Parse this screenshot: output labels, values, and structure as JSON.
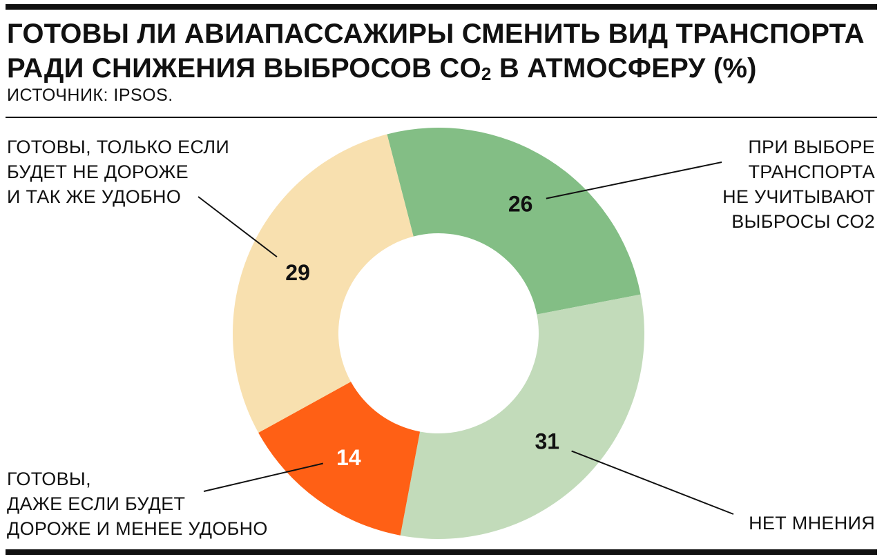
{
  "header": {
    "title_line1": "ГОТОВЫ ЛИ АВИАПАССАЖИРЫ СМЕНИТЬ ВИД ТРАНСПОРТА",
    "title_line2_pre": "РАДИ СНИЖЕНИЯ ВЫБРОСОВ CO",
    "title_line2_sub": "2",
    "title_line2_post": " В АТМОСФЕРУ (%)",
    "source": "ИСТОЧНИК: IPSOS."
  },
  "chart_data": {
    "type": "pie",
    "donut": true,
    "categories": [
      "ПРИ ВЫБОРЕ\nТРАНСПОРТА\nНЕ УЧИТЫВАЮТ\nВЫБРОСЫ CO2",
      "НЕТ МНЕНИЯ",
      "ГОТОВЫ,\nДАЖЕ ЕСЛИ БУДЕТ\nДОРОЖЕ И МЕНЕЕ УДОБНО",
      "ГОТОВЫ, ТОЛЬКО ЕСЛИ\nБУДЕТ НЕ ДОРОЖЕ\nИ ТАК ЖЕ УДОБНО"
    ],
    "values": [
      26,
      31,
      14,
      29
    ],
    "value_labels": [
      "26",
      "31",
      "14",
      "29"
    ],
    "colors": [
      "#83BE85",
      "#C2DBBA",
      "#FF6015",
      "#F8E0AF"
    ],
    "label_colors": [
      "#111111",
      "#111111",
      "#ffffff",
      "#111111"
    ],
    "unit": "%"
  }
}
